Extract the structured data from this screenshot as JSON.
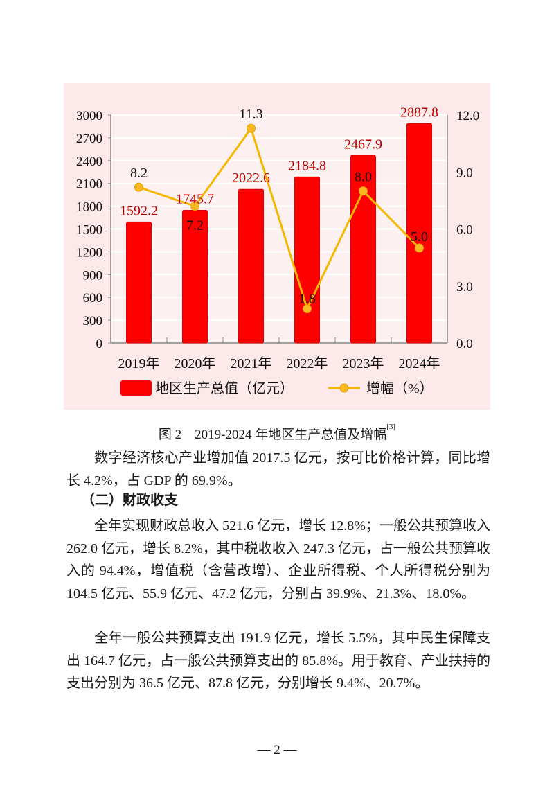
{
  "chart": {
    "background": "#fde9ea",
    "bar_color": "#ff0000",
    "line_color": "#f5b800",
    "marker_color": "#f7b822",
    "value_label_color": "#c00000",
    "left_axis_ticks": [
      "0",
      "300",
      "600",
      "900",
      "1200",
      "1500",
      "1800",
      "2100",
      "2400",
      "2700",
      "3000"
    ],
    "right_axis_ticks": [
      "0.0",
      "3.0",
      "6.0",
      "9.0",
      "12.0"
    ],
    "legend": {
      "bar_label": "地区生产总值（亿元）",
      "line_label": "增幅（%）"
    }
  },
  "chart_data": {
    "type": "bar",
    "title": "2019-2024年地区生产总值及增幅",
    "categories": [
      "2019年",
      "2020年",
      "2021年",
      "2022年",
      "2023年",
      "2024年"
    ],
    "series": [
      {
        "name": "地区生产总值（亿元）",
        "type": "bar",
        "axis": "left",
        "values": [
          1592.2,
          1745.7,
          2022.6,
          2184.8,
          2467.9,
          2887.8
        ]
      },
      {
        "name": "增幅（%）",
        "type": "line",
        "axis": "right",
        "values": [
          8.2,
          7.2,
          11.3,
          1.8,
          8.0,
          5.0
        ]
      }
    ],
    "xlabel": "",
    "ylabel": "",
    "ylim": [
      0,
      3000
    ],
    "y2lim": [
      0,
      12.0
    ],
    "grid": true,
    "legend_position": "bottom"
  },
  "caption": {
    "text": "图 2　2019-2024 年地区生产总值及增幅",
    "footnote": "[3]"
  },
  "paragraphs": {
    "p1": "数字经济核心产业增加值 2017.5 亿元，按可比价格计算，同比增长 4.2%，占 GDP 的 69.9%。",
    "heading": "（二）财政收支",
    "p2": "全年实现财政总收入 521.6 亿元，增长 12.8%；一般公共预算收入 262.0 亿元，增长 8.2%，其中税收收入 247.3 亿元，占一般公共预算收入的 94.4%，增值税（含营改增）、企业所得税、个人所得税分别为 104.5 亿元、55.9 亿元、47.2 亿元，分别占 39.9%、21.3%、18.0%。",
    "p3": "全年一般公共预算支出 191.9 亿元，增长 5.5%，其中民生保障支出 164.7 亿元，占一般公共预算支出的 85.8%。用于教育、产业扶持的支出分别为 36.5 亿元、87.8 亿元，分别增长 9.4%、20.7%。"
  },
  "page_number": "— 2 —"
}
